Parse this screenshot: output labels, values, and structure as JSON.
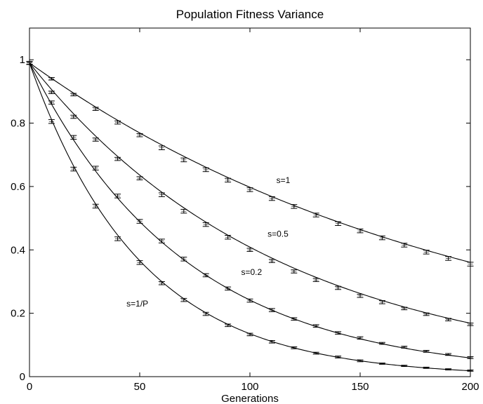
{
  "chart_data": {
    "type": "line",
    "title": "Population Fitness Variance",
    "xlabel": "Generations",
    "ylabel": "",
    "xlim": [
      0,
      200
    ],
    "ylim": [
      0,
      1.1
    ],
    "xticks": [
      0,
      50,
      100,
      150,
      200
    ],
    "yticks": [
      0,
      0.2,
      0.4,
      0.6,
      0.8,
      1
    ],
    "xtick_labels": [
      "0",
      "50",
      "100",
      "150",
      "200"
    ],
    "ytick_labels": [
      "0",
      "0.2",
      "0.4",
      "0.6",
      "0.8",
      "1"
    ],
    "grid": false,
    "legend": "none",
    "x": [
      0,
      10,
      20,
      30,
      40,
      50,
      60,
      70,
      80,
      90,
      100,
      110,
      120,
      130,
      140,
      150,
      160,
      170,
      180,
      190,
      200
    ],
    "series": [
      {
        "name": "s=1",
        "label_at": [
          112,
          0.62
        ],
        "curve_rate": 0.00505,
        "values": [
          0.99,
          0.94,
          0.89,
          0.845,
          0.802,
          0.762,
          0.722,
          0.684,
          0.653,
          0.62,
          0.59,
          0.562,
          0.537,
          0.51,
          0.483,
          0.46,
          0.438,
          0.415,
          0.393,
          0.373,
          0.355
        ],
        "errors": [
          0.004,
          0.004,
          0.004,
          0.005,
          0.005,
          0.005,
          0.006,
          0.006,
          0.006,
          0.006,
          0.006,
          0.006,
          0.006,
          0.006,
          0.006,
          0.006,
          0.006,
          0.006,
          0.006,
          0.006,
          0.006
        ]
      },
      {
        "name": "s=0.5",
        "label_at": [
          108,
          0.45
        ],
        "curve_rate": 0.00885,
        "values": [
          0.99,
          0.897,
          0.82,
          0.748,
          0.687,
          0.626,
          0.574,
          0.522,
          0.48,
          0.44,
          0.4,
          0.365,
          0.332,
          0.305,
          0.28,
          0.255,
          0.235,
          0.215,
          0.197,
          0.18,
          0.165
        ],
        "errors": [
          0.004,
          0.004,
          0.005,
          0.005,
          0.005,
          0.005,
          0.006,
          0.006,
          0.006,
          0.006,
          0.005,
          0.005,
          0.005,
          0.005,
          0.005,
          0.005,
          0.005,
          0.004,
          0.004,
          0.004,
          0.004
        ]
      },
      {
        "name": "s=0.2",
        "label_at": [
          96,
          0.33
        ],
        "curve_rate": 0.0141,
        "values": [
          0.99,
          0.865,
          0.755,
          0.658,
          0.57,
          0.49,
          0.428,
          0.371,
          0.32,
          0.278,
          0.24,
          0.21,
          0.182,
          0.16,
          0.138,
          0.122,
          0.105,
          0.093,
          0.08,
          0.07,
          0.06
        ],
        "errors": [
          0.004,
          0.005,
          0.006,
          0.006,
          0.006,
          0.006,
          0.006,
          0.006,
          0.005,
          0.005,
          0.005,
          0.005,
          0.004,
          0.004,
          0.004,
          0.004,
          0.003,
          0.003,
          0.003,
          0.003,
          0.003
        ]
      },
      {
        "name": "s=1/P",
        "label_at": [
          44,
          0.23
        ],
        "curve_rate": 0.0199,
        "values": [
          0.99,
          0.805,
          0.655,
          0.538,
          0.435,
          0.36,
          0.295,
          0.242,
          0.198,
          0.162,
          0.133,
          0.11,
          0.091,
          0.074,
          0.062,
          0.05,
          0.041,
          0.034,
          0.028,
          0.023,
          0.019
        ],
        "errors": [
          0.005,
          0.006,
          0.006,
          0.006,
          0.006,
          0.006,
          0.005,
          0.005,
          0.005,
          0.004,
          0.004,
          0.004,
          0.003,
          0.003,
          0.003,
          0.003,
          0.002,
          0.002,
          0.002,
          0.002,
          0.002
        ]
      }
    ]
  }
}
